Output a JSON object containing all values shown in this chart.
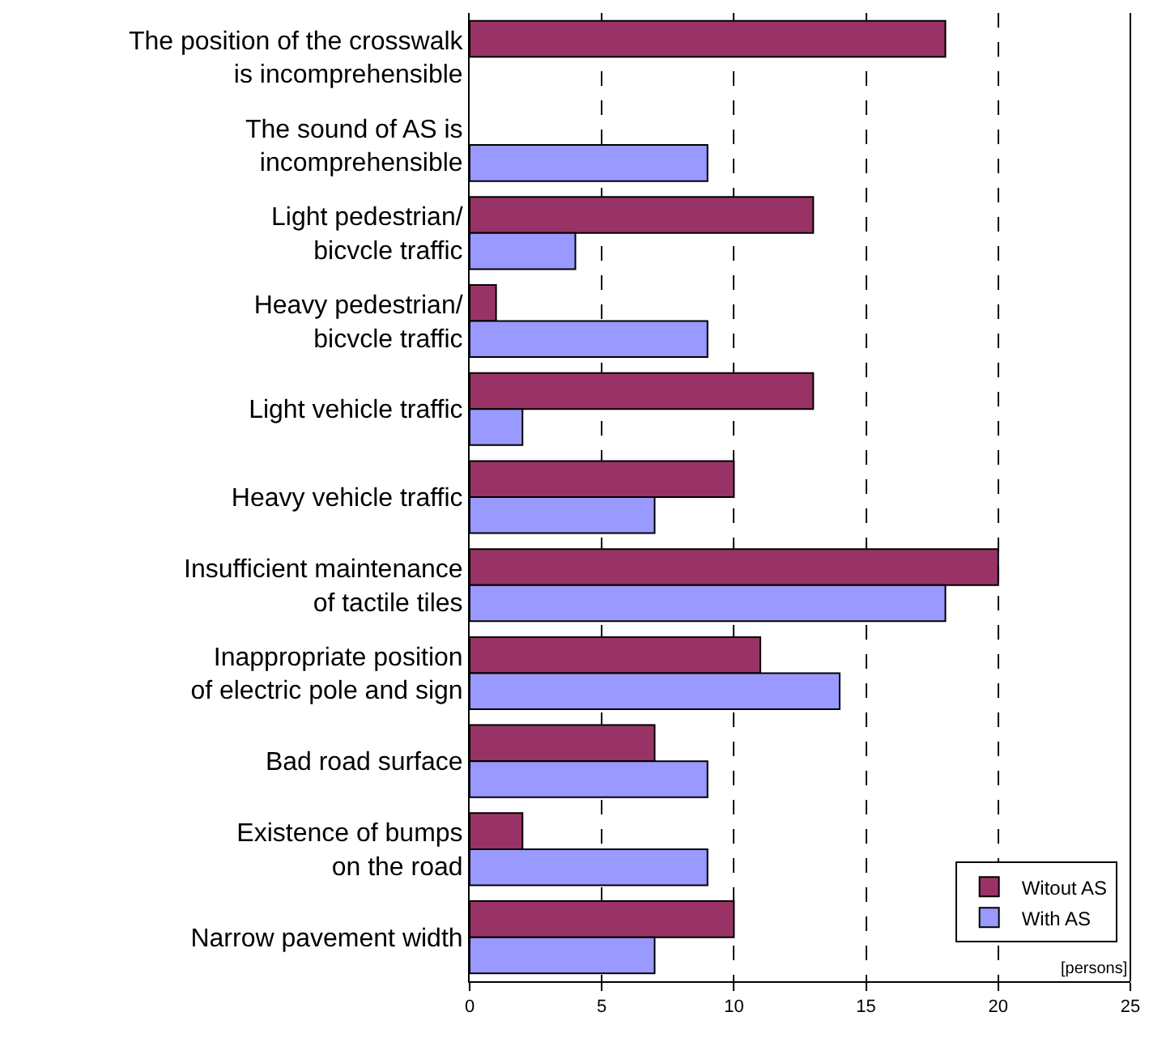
{
  "chart_data": {
    "type": "bar",
    "orientation": "horizontal",
    "categories": [
      "The position of the crosswalk\nis incomprehensible",
      "The sound of AS is\nincomprehensible",
      "Light pedestrian/\nbicvcle traffic",
      "Heavy pedestrian/\nbicvcle traffic",
      "Light vehicle traffic",
      "Heavy vehicle traffic",
      "Insufficient maintenance\nof tactile tiles",
      "Inappropriate position\nof electric pole and sign",
      "Bad road surface",
      "Existence of bumps\non the road",
      "Narrow pavement width"
    ],
    "series": [
      {
        "name": "Witout AS",
        "color": "#993366",
        "values": [
          18,
          null,
          13,
          1,
          13,
          10,
          20,
          11,
          7,
          2,
          10
        ]
      },
      {
        "name": "With AS",
        "color": "#9999ff",
        "values": [
          null,
          9,
          4,
          9,
          2,
          7,
          18,
          14,
          9,
          9,
          7
        ]
      }
    ],
    "xlabel": "[persons]",
    "xlim": [
      0,
      25
    ],
    "xticks": [
      0,
      5,
      10,
      15,
      20,
      25
    ],
    "grid": "x",
    "legend": "bottom right"
  }
}
